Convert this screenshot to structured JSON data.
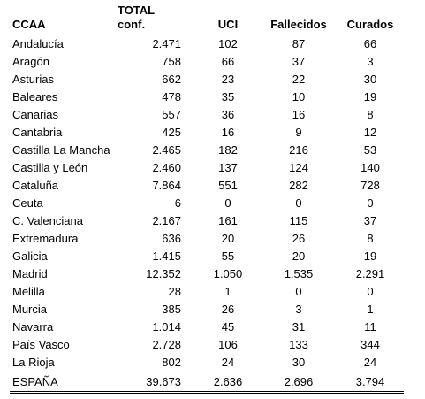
{
  "headers": {
    "ccaa": "CCAA",
    "total_line1": "TOTAL",
    "total_line2": "conf.",
    "uci": "UCI",
    "fallecidos": "Fallecidos",
    "curados": "Curados"
  },
  "rows": [
    {
      "ccaa": "Andalucía",
      "total": "2.471",
      "uci": "102",
      "fallecidos": "87",
      "curados": "66"
    },
    {
      "ccaa": "Aragón",
      "total": "758",
      "uci": "66",
      "fallecidos": "37",
      "curados": "3"
    },
    {
      "ccaa": "Asturias",
      "total": "662",
      "uci": "23",
      "fallecidos": "22",
      "curados": "30"
    },
    {
      "ccaa": "Baleares",
      "total": "478",
      "uci": "35",
      "fallecidos": "10",
      "curados": "19"
    },
    {
      "ccaa": "Canarias",
      "total": "557",
      "uci": "36",
      "fallecidos": "16",
      "curados": "8"
    },
    {
      "ccaa": "Cantabria",
      "total": "425",
      "uci": "16",
      "fallecidos": "9",
      "curados": "12"
    },
    {
      "ccaa": "Castilla La Mancha",
      "total": "2.465",
      "uci": "182",
      "fallecidos": "216",
      "curados": "53"
    },
    {
      "ccaa": "Castilla y León",
      "total": "2.460",
      "uci": "137",
      "fallecidos": "124",
      "curados": "140"
    },
    {
      "ccaa": "Cataluña",
      "total": "7.864",
      "uci": "551",
      "fallecidos": "282",
      "curados": "728"
    },
    {
      "ccaa": "Ceuta",
      "total": "6",
      "uci": "0",
      "fallecidos": "0",
      "curados": "0"
    },
    {
      "ccaa": "C. Valenciana",
      "total": "2.167",
      "uci": "161",
      "fallecidos": "115",
      "curados": "37"
    },
    {
      "ccaa": "Extremadura",
      "total": "636",
      "uci": "20",
      "fallecidos": "26",
      "curados": "8"
    },
    {
      "ccaa": "Galicia",
      "total": "1.415",
      "uci": "55",
      "fallecidos": "20",
      "curados": "19"
    },
    {
      "ccaa": "Madrid",
      "total": "12.352",
      "uci": "1.050",
      "fallecidos": "1.535",
      "curados": "2.291"
    },
    {
      "ccaa": "Melilla",
      "total": "28",
      "uci": "1",
      "fallecidos": "0",
      "curados": "0"
    },
    {
      "ccaa": "Murcia",
      "total": "385",
      "uci": "26",
      "fallecidos": "3",
      "curados": "1"
    },
    {
      "ccaa": "Navarra",
      "total": "1.014",
      "uci": "45",
      "fallecidos": "31",
      "curados": "11"
    },
    {
      "ccaa": "País Vasco",
      "total": "2.728",
      "uci": "106",
      "fallecidos": "133",
      "curados": "344"
    },
    {
      "ccaa": "La Rioja",
      "total": "802",
      "uci": "24",
      "fallecidos": "30",
      "curados": "24"
    }
  ],
  "totals": {
    "ccaa": "ESPAÑA",
    "total": "39.673",
    "uci": "2.636",
    "fallecidos": "2.696",
    "curados": "3.794"
  }
}
